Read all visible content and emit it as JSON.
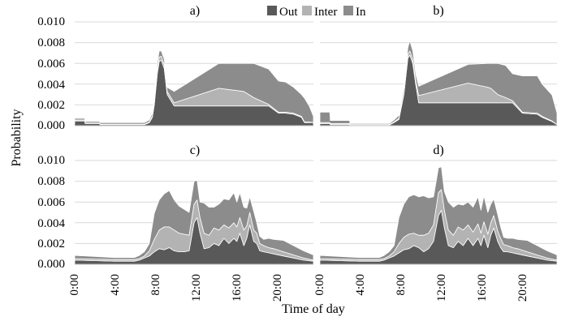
{
  "figure": {
    "ylabel": "Probability",
    "xlabel": "Time of day",
    "legend": [
      {
        "label": "Out",
        "color": "#595959"
      },
      {
        "label": "Inter",
        "color": "#b3b3b3"
      },
      {
        "label": "In",
        "color": "#8c8c8c"
      }
    ],
    "yticks": [
      "0.000",
      "0.002",
      "0.004",
      "0.006",
      "0.008",
      "0.010"
    ],
    "xticks": [
      "0:00",
      "4:00",
      "8:00",
      "12:00",
      "16:00",
      "20:00"
    ]
  },
  "chart_data": [
    {
      "type": "area",
      "title": "a)",
      "stacked": true,
      "xunit": "hour of day",
      "ylim": [
        0,
        0.01
      ],
      "xlim": [
        0,
        24
      ],
      "grid": true,
      "legend_position": "top-center",
      "x": [
        0,
        1,
        1.05,
        2.5,
        2.55,
        7,
        7.5,
        7.8,
        8,
        8.3,
        8.5,
        8.7,
        9,
        9.3,
        10,
        14.5,
        17,
        17.5,
        18,
        19.5,
        20.5,
        21.2,
        22,
        22.8,
        23.1,
        23.6,
        24
      ],
      "series": [
        {
          "name": "Out",
          "color": "#595959",
          "values": [
            0.00045,
            0.00045,
            0.0002,
            0.0002,
            0.0001,
            0.0001,
            0.0003,
            0.0008,
            0.002,
            0.005,
            0.0062,
            0.0063,
            0.0055,
            0.003,
            0.0019,
            0.0019,
            0.0019,
            0.0019,
            0.0019,
            0.0019,
            0.0012,
            0.0012,
            0.0011,
            0.0008,
            0.0003,
            0.0003,
            0.0003
          ]
        },
        {
          "name": "Inter",
          "color": "#b3b3b3",
          "values": [
            0.0001,
            0.0001,
            5e-05,
            5e-05,
            5e-05,
            5e-05,
            5e-05,
            0.0001,
            0.0002,
            0.0004,
            0.0004,
            0.0004,
            0.0004,
            0.0003,
            0.0003,
            0.0017,
            0.0014,
            0.0011,
            0.0008,
            0.00015,
            0.0001,
            0.0001,
            0.0001,
            0.0001,
            5e-05,
            5e-05,
            0
          ]
        },
        {
          "name": "In",
          "color": "#8c8c8c",
          "values": [
            0.00015,
            0.00015,
            0.00015,
            0.00015,
            0.00015,
            0.00015,
            0.0002,
            0.0003,
            0.0004,
            0.0006,
            0.0006,
            0.0005,
            0.0005,
            0.0004,
            0.0011,
            0.0024,
            0.0027,
            0.003,
            0.0033,
            0.0034,
            0.003,
            0.0029,
            0.0025,
            0.0021,
            0.0023,
            0.0015,
            0.0006
          ]
        }
      ]
    },
    {
      "type": "area",
      "title": "b)",
      "stacked": true,
      "xunit": "hour of day",
      "ylim": [
        0,
        0.01
      ],
      "xlim": [
        0,
        24
      ],
      "grid": true,
      "x": [
        0,
        1,
        1.05,
        3,
        3.05,
        7,
        7.5,
        8,
        8.5,
        8.9,
        9.1,
        9.4,
        9.7,
        10,
        15,
        17,
        17.3,
        18,
        18.8,
        19.5,
        20.5,
        22,
        22.5,
        23.5,
        24
      ],
      "series": [
        {
          "name": "Out",
          "color": "#595959",
          "values": [
            0.0002,
            0.0002,
            0.0001,
            0.0001,
            5e-05,
            5e-05,
            0.0003,
            0.0006,
            0.003,
            0.0065,
            0.0068,
            0.006,
            0.004,
            0.0022,
            0.0022,
            0.0022,
            0.0022,
            0.0022,
            0.0022,
            0.0022,
            0.0012,
            0.0011,
            0.0008,
            0.0004,
            0.0001
          ]
        },
        {
          "name": "Inter",
          "color": "#b3b3b3",
          "values": [
            0.0001,
            0.0001,
            0.0001,
            0.0001,
            5e-05,
            5e-05,
            5e-05,
            0.0001,
            0.0002,
            0.0004,
            0.0004,
            0.0004,
            0.0003,
            0.0007,
            0.0019,
            0.0015,
            0.0014,
            0.0008,
            0.0005,
            0.0002,
            0.0001,
            0.0001,
            0.0001,
            5e-05,
            0
          ]
        },
        {
          "name": "In",
          "color": "#8c8c8c",
          "values": [
            0.001,
            0.001,
            0.0003,
            0.0003,
            0.0001,
            0.0001,
            0.0002,
            0.0003,
            0.0005,
            0.0006,
            0.001,
            0.0008,
            0.0007,
            0.0009,
            0.0018,
            0.0023,
            0.0024,
            0.003,
            0.0031,
            0.0026,
            0.0035,
            0.0036,
            0.0031,
            0.0025,
            0.0011
          ]
        }
      ]
    },
    {
      "type": "area",
      "title": "c)",
      "stacked": true,
      "xunit": "hour of day",
      "ylim": [
        0,
        0.01
      ],
      "xlim": [
        0,
        24
      ],
      "grid": true,
      "x": [
        0,
        4,
        6,
        6.5,
        7,
        7.5,
        8,
        8.5,
        9,
        9.5,
        10,
        10.5,
        11,
        11.5,
        12,
        12.3,
        12.6,
        13,
        13.5,
        14,
        14.5,
        15,
        15.5,
        16,
        16.3,
        16.6,
        17,
        17.3,
        17.6,
        18,
        18.3,
        18.6,
        19,
        19.5,
        20,
        21,
        22,
        23,
        24
      ],
      "series": [
        {
          "name": "Out",
          "color": "#595959",
          "values": [
            0.0004,
            0.0003,
            0.0003,
            0.0004,
            0.0006,
            0.0008,
            0.0012,
            0.0015,
            0.0014,
            0.0016,
            0.0013,
            0.0012,
            0.0012,
            0.0013,
            0.004,
            0.0045,
            0.003,
            0.0015,
            0.0016,
            0.002,
            0.0018,
            0.0025,
            0.002,
            0.0025,
            0.0022,
            0.003,
            0.0018,
            0.0025,
            0.0038,
            0.0022,
            0.002,
            0.0013,
            0.0012,
            0.0011,
            0.001,
            0.0008,
            0.0006,
            0.0004,
            0.0003
          ]
        },
        {
          "name": "Inter",
          "color": "#b3b3b3",
          "values": [
            0.00015,
            0.00015,
            0.00015,
            0.00015,
            0.0002,
            0.0005,
            0.0012,
            0.0018,
            0.0022,
            0.002,
            0.002,
            0.0018,
            0.0017,
            0.0015,
            0.0018,
            0.0017,
            0.0015,
            0.0015,
            0.0012,
            0.0015,
            0.0015,
            0.0013,
            0.0015,
            0.0015,
            0.0014,
            0.0015,
            0.0015,
            0.0012,
            0.0012,
            0.0011,
            0.001,
            0.0007,
            0.0006,
            0.0005,
            0.0005,
            0.0004,
            0.0003,
            0.0002,
            0.0001
          ]
        },
        {
          "name": "In",
          "color": "#8c8c8c",
          "values": [
            0.0003,
            0.0002,
            0.0002,
            0.0003,
            0.0004,
            0.0007,
            0.0025,
            0.0029,
            0.0032,
            0.0035,
            0.0029,
            0.0026,
            0.0024,
            0.0022,
            0.0022,
            0.0019,
            0.0015,
            0.0029,
            0.0027,
            0.002,
            0.0025,
            0.0025,
            0.0027,
            0.0029,
            0.0024,
            0.0024,
            0.0022,
            0.0017,
            0.0015,
            0.0018,
            0.001,
            0.0007,
            0.0006,
            0.0009,
            0.0009,
            0.0011,
            0.0009,
            0.0007,
            0.0005
          ]
        }
      ]
    },
    {
      "type": "area",
      "title": "d)",
      "stacked": true,
      "xunit": "hour of day",
      "ylim": [
        0,
        0.01
      ],
      "xlim": [
        0,
        24
      ],
      "grid": true,
      "x": [
        0,
        4,
        6,
        6.5,
        7,
        7.5,
        8,
        8.5,
        9,
        9.5,
        10,
        10.5,
        11,
        11.5,
        12,
        12.3,
        12.6,
        13,
        13.5,
        14,
        14.5,
        15,
        15.5,
        16,
        16.3,
        16.6,
        17,
        17.3,
        17.6,
        18,
        18.3,
        18.6,
        19,
        19.5,
        20,
        21,
        22,
        23,
        24
      ],
      "series": [
        {
          "name": "Out",
          "color": "#595959",
          "values": [
            0.0004,
            0.0003,
            0.0003,
            0.0004,
            0.0006,
            0.0008,
            0.0011,
            0.0014,
            0.0015,
            0.0018,
            0.0016,
            0.0012,
            0.0015,
            0.0022,
            0.0047,
            0.0052,
            0.0035,
            0.0018,
            0.0016,
            0.0022,
            0.0018,
            0.0025,
            0.0018,
            0.0025,
            0.0018,
            0.0028,
            0.0016,
            0.0028,
            0.0035,
            0.0022,
            0.0016,
            0.0012,
            0.0012,
            0.0011,
            0.001,
            0.0008,
            0.0006,
            0.0004,
            0.0003
          ]
        },
        {
          "name": "Inter",
          "color": "#b3b3b3",
          "values": [
            0.00015,
            0.00015,
            0.00015,
            0.00015,
            0.0002,
            0.0004,
            0.0009,
            0.0012,
            0.0014,
            0.0012,
            0.0012,
            0.0016,
            0.0015,
            0.0016,
            0.0022,
            0.002,
            0.0017,
            0.0015,
            0.0012,
            0.0014,
            0.0015,
            0.0013,
            0.0013,
            0.0014,
            0.0012,
            0.0013,
            0.0013,
            0.0012,
            0.0012,
            0.001,
            0.0009,
            0.0007,
            0.0006,
            0.0005,
            0.0005,
            0.0004,
            0.0003,
            0.0002,
            0.0001
          ]
        },
        {
          "name": "In",
          "color": "#8c8c8c",
          "values": [
            0.0003,
            0.0002,
            0.0002,
            0.0003,
            0.0004,
            0.0006,
            0.0025,
            0.0032,
            0.0036,
            0.0037,
            0.0037,
            0.0038,
            0.0034,
            0.0027,
            0.0024,
            0.0022,
            0.0018,
            0.0027,
            0.0027,
            0.0022,
            0.0024,
            0.0022,
            0.0024,
            0.0026,
            0.0022,
            0.0025,
            0.0021,
            0.0018,
            0.0016,
            0.0016,
            0.0011,
            0.0007,
            0.0007,
            0.0009,
            0.0009,
            0.0011,
            0.0009,
            0.0007,
            0.0005
          ]
        }
      ]
    }
  ]
}
